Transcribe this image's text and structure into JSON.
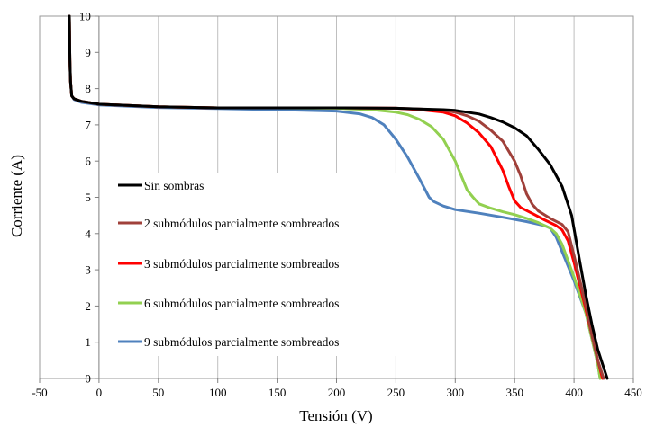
{
  "chart_data": {
    "type": "line",
    "title": "",
    "xlabel": "Tensión (V)",
    "ylabel": "Corriente (A)",
    "xlim": [
      -50,
      450
    ],
    "ylim": [
      0,
      10
    ],
    "x_ticks": [
      -50,
      0,
      50,
      100,
      150,
      200,
      250,
      300,
      350,
      400,
      450
    ],
    "y_ticks": [
      0,
      1,
      2,
      3,
      4,
      5,
      6,
      7,
      8,
      9,
      10
    ],
    "grid": "vertical",
    "legend_position": "left",
    "series": [
      {
        "name": "Sin sombras",
        "color": "#000000",
        "x": [
          -25,
          -24.5,
          -24,
          -23,
          -21,
          -15,
          0,
          50,
          100,
          150,
          200,
          250,
          270,
          290,
          300,
          310,
          320,
          330,
          340,
          350,
          360,
          370,
          380,
          390,
          398,
          405,
          410,
          415,
          420,
          425,
          428
        ],
        "y": [
          10,
          8.8,
          8.2,
          7.8,
          7.72,
          7.65,
          7.57,
          7.5,
          7.47,
          7.47,
          7.47,
          7.46,
          7.44,
          7.42,
          7.4,
          7.35,
          7.3,
          7.2,
          7.08,
          6.92,
          6.7,
          6.32,
          5.9,
          5.3,
          4.5,
          3.2,
          2.3,
          1.5,
          0.8,
          0.3,
          0
        ]
      },
      {
        "name": "2 submódulos parcialmente sombreados",
        "color": "#a0403a",
        "x": [
          -25,
          -24.5,
          -24,
          -23,
          -21,
          -15,
          0,
          50,
          100,
          150,
          200,
          250,
          270,
          290,
          300,
          310,
          320,
          330,
          340,
          350,
          355,
          360,
          365,
          370,
          380,
          390,
          395,
          400,
          410,
          415,
          420,
          425
        ],
        "y": [
          10,
          8.8,
          8.2,
          7.8,
          7.72,
          7.65,
          7.57,
          7.5,
          7.47,
          7.47,
          7.47,
          7.46,
          7.44,
          7.4,
          7.35,
          7.25,
          7.1,
          6.85,
          6.55,
          6.0,
          5.6,
          5.1,
          4.8,
          4.62,
          4.42,
          4.25,
          4.05,
          3.4,
          2.0,
          1.2,
          0.5,
          0
        ]
      },
      {
        "name": "3 submódulos parcialmente sombreados",
        "color": "#ff0000",
        "x": [
          -25,
          -24.5,
          -24,
          -23,
          -21,
          -15,
          0,
          50,
          100,
          150,
          200,
          250,
          270,
          290,
          300,
          310,
          320,
          330,
          340,
          345,
          350,
          355,
          365,
          375,
          385,
          390,
          395,
          400,
          410,
          415,
          420,
          424
        ],
        "y": [
          10,
          8.8,
          8.2,
          7.8,
          7.72,
          7.65,
          7.57,
          7.5,
          7.47,
          7.47,
          7.47,
          7.46,
          7.42,
          7.35,
          7.25,
          7.05,
          6.78,
          6.4,
          5.75,
          5.3,
          4.9,
          4.72,
          4.55,
          4.38,
          4.22,
          4.1,
          3.8,
          3.2,
          1.9,
          1.2,
          0.5,
          0
        ]
      },
      {
        "name": "6 submódulos parcialmente sombreados",
        "color": "#92d050",
        "x": [
          -25,
          -24.5,
          -24,
          -23,
          -21,
          -15,
          0,
          50,
          100,
          150,
          200,
          230,
          250,
          260,
          270,
          280,
          290,
          300,
          305,
          310,
          315,
          320,
          330,
          340,
          350,
          360,
          370,
          380,
          385,
          390,
          395,
          400,
          410,
          415,
          420,
          422
        ],
        "y": [
          10,
          8.8,
          8.2,
          7.8,
          7.72,
          7.65,
          7.57,
          7.5,
          7.47,
          7.47,
          7.46,
          7.42,
          7.35,
          7.28,
          7.15,
          6.95,
          6.6,
          6.0,
          5.6,
          5.2,
          5.0,
          4.82,
          4.7,
          4.6,
          4.52,
          4.42,
          4.3,
          4.15,
          4.0,
          3.7,
          3.25,
          2.8,
          1.8,
          1.1,
          0.4,
          0
        ]
      },
      {
        "name": "9 submódulos parcialmente sombreados",
        "color": "#4f81bd",
        "x": [
          -25,
          -24.5,
          -24,
          -23,
          -21,
          -15,
          0,
          50,
          100,
          150,
          200,
          220,
          230,
          240,
          250,
          260,
          270,
          278,
          282,
          290,
          300,
          320,
          340,
          360,
          375,
          380,
          385,
          390,
          395,
          400,
          410,
          415,
          420,
          422
        ],
        "y": [
          10,
          8.8,
          8.2,
          7.8,
          7.7,
          7.62,
          7.55,
          7.48,
          7.45,
          7.42,
          7.38,
          7.3,
          7.2,
          7.0,
          6.6,
          6.1,
          5.5,
          5.0,
          4.88,
          4.76,
          4.66,
          4.56,
          4.45,
          4.33,
          4.22,
          4.15,
          3.9,
          3.5,
          3.1,
          2.7,
          1.8,
          1.1,
          0.4,
          0
        ]
      }
    ]
  }
}
